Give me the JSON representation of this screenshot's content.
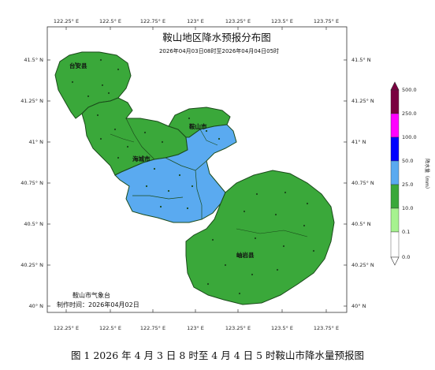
{
  "map": {
    "title": "鞍山地区降水预报分布图",
    "subtitle": "2026年04月03日08时至2026年04月04日05时",
    "lon_labels": [
      "122.25° E",
      "122.5° E",
      "122.75° E",
      "123° E",
      "123.25° E",
      "123.5° E",
      "123.75° E"
    ],
    "lat_labels": [
      "41.5° N",
      "41.25° N",
      "41° N",
      "40.75° N",
      "40.5° N",
      "40.25° N",
      "40° N"
    ],
    "county_labels": {
      "taian": "台安县",
      "anshan_city": "鞍山市",
      "haicheng": "海城市",
      "xiuyan": "岫岩县"
    },
    "footer": {
      "agency": "鞍山市气象台",
      "made_time": "制作时间：2026年04月02日"
    },
    "colors": {
      "rain_light_green": "#3aa83a",
      "rain_blue": "#5aaaf0",
      "border": "#1a4a1a",
      "frame": "#333333"
    }
  },
  "legend": {
    "unit_label": "降水量（mm）",
    "tick_labels": [
      "0.0",
      "0.1",
      "10.0",
      "25.0",
      "50.0",
      "100.0",
      "250.0",
      "500.0"
    ],
    "band_colors": [
      "#ffffff",
      "#a6f28f",
      "#3aa83a",
      "#5aaaf0",
      "#0000ff",
      "#ff00ff",
      "#ff00ff",
      "#7a0040"
    ]
  },
  "caption": "图 1 2026 年 4 月 3 日 8 时至 4 月 4 日 5 时鞍山市降水量预报图"
}
